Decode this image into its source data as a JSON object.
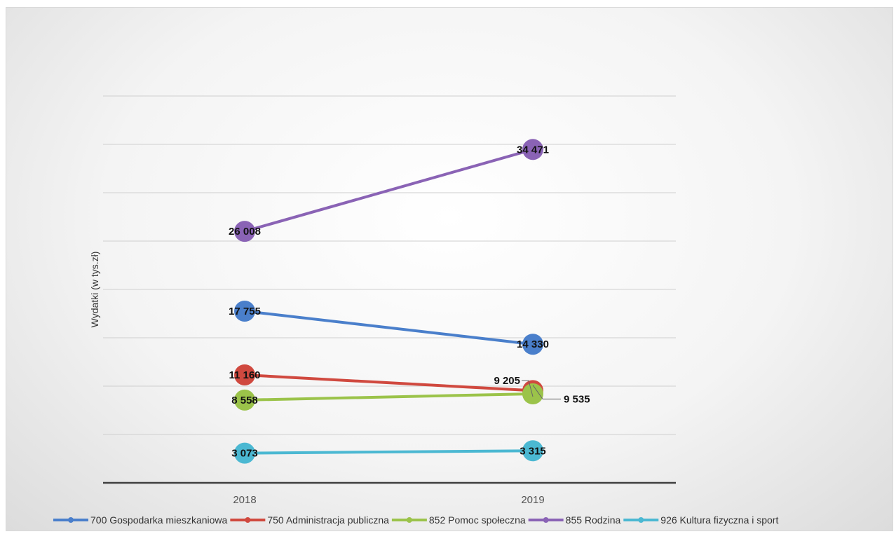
{
  "chart_data": {
    "type": "line",
    "ylabel": "Wydatki  (w tys.zł)",
    "xlabel": "",
    "categories": [
      "2018",
      "2019"
    ],
    "ylim": [
      0,
      40000
    ],
    "grid": true,
    "legend_position": "bottom",
    "series": [
      {
        "name": "700 Gospodarka mieszkaniowa",
        "color": "#4a7fcb",
        "values": [
          17755,
          14330
        ],
        "labels": [
          "17 755",
          "14 330"
        ]
      },
      {
        "name": "750 Administracja publiczna",
        "color": "#d0493f",
        "values": [
          11160,
          9535
        ],
        "labels": [
          "11 160",
          "9 535"
        ]
      },
      {
        "name": "852 Pomoc społeczna",
        "color": "#9bc34a",
        "values": [
          8558,
          9205
        ],
        "labels": [
          "8 558",
          "9 205"
        ]
      },
      {
        "name": "855 Rodzina",
        "color": "#8a63b5",
        "values": [
          26008,
          34471
        ],
        "labels": [
          "26 008",
          "34 471"
        ]
      },
      {
        "name": "926 Kultura fizyczna i sport",
        "color": "#4bb8d2",
        "values": [
          3073,
          3315
        ],
        "labels": [
          "3 073",
          "3 315"
        ]
      }
    ]
  }
}
